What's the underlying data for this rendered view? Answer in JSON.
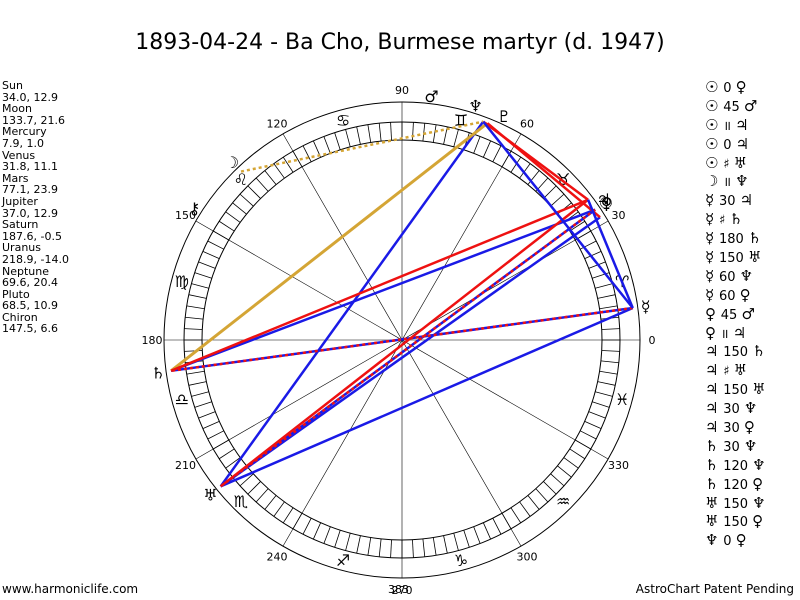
{
  "title": "1893-04-24 - Ba Cho, Burmese martyr (d. 1947)",
  "footer": {
    "left": "www.harmoniclife.com",
    "center": "383",
    "right": "AstroChart Patent Pending"
  },
  "planets": [
    {
      "name": "Sun",
      "coords": "34.0, 12.9"
    },
    {
      "name": "Moon",
      "coords": "133.7, 21.6"
    },
    {
      "name": "Mercury",
      "coords": "7.9, 1.0"
    },
    {
      "name": "Venus",
      "coords": "31.8, 11.1"
    },
    {
      "name": "Mars",
      "coords": "77.1, 23.9"
    },
    {
      "name": "Jupiter",
      "coords": "37.0, 12.9"
    },
    {
      "name": "Saturn",
      "coords": "187.6, -0.5"
    },
    {
      "name": "Uranus",
      "coords": "218.9, -14.0"
    },
    {
      "name": "Neptune",
      "coords": "69.6, 20.4"
    },
    {
      "name": "Pluto",
      "coords": "68.5, 10.9"
    },
    {
      "name": "Chiron",
      "coords": "147.5, 6.6"
    }
  ],
  "aspects": [
    {
      "p1": "☉",
      "angle": "0",
      "p2": "♀"
    },
    {
      "p1": "☉",
      "angle": "45",
      "p2": "♂"
    },
    {
      "p1": "☉",
      "angle": "॥",
      "p2": "♃"
    },
    {
      "p1": "☉",
      "angle": "0",
      "p2": "♃"
    },
    {
      "p1": "☉",
      "angle": "♯",
      "p2": "♅"
    },
    {
      "p1": "☽",
      "angle": "॥",
      "p2": "♆"
    },
    {
      "p1": "☿",
      "angle": "30",
      "p2": "♃"
    },
    {
      "p1": "☿",
      "angle": "♯",
      "p2": "♄"
    },
    {
      "p1": "☿",
      "angle": "180",
      "p2": "♄"
    },
    {
      "p1": "☿",
      "angle": "150",
      "p2": "♅"
    },
    {
      "p1": "☿",
      "angle": "60",
      "p2": "♆"
    },
    {
      "p1": "☿",
      "angle": "60",
      "p2": "♀"
    },
    {
      "p1": "♀",
      "angle": "45",
      "p2": "♂"
    },
    {
      "p1": "♀",
      "angle": "॥",
      "p2": "♃"
    },
    {
      "p1": "♃",
      "angle": "150",
      "p2": "♄"
    },
    {
      "p1": "♃",
      "angle": "♯",
      "p2": "♅"
    },
    {
      "p1": "♃",
      "angle": "150",
      "p2": "♅"
    },
    {
      "p1": "♃",
      "angle": "30",
      "p2": "♆"
    },
    {
      "p1": "♃",
      "angle": "30",
      "p2": "♀"
    },
    {
      "p1": "♄",
      "angle": "30",
      "p2": "♆"
    },
    {
      "p1": "♄",
      "angle": "120",
      "p2": "♆"
    },
    {
      "p1": "♄",
      "angle": "120",
      "p2": "♀"
    },
    {
      "p1": "♅",
      "angle": "150",
      "p2": "♆"
    },
    {
      "p1": "♅",
      "angle": "150",
      "p2": "♀"
    },
    {
      "p1": "♆",
      "angle": "0",
      "p2": "♀"
    }
  ],
  "wheel": {
    "degree_labels": [
      "0",
      "30",
      "60",
      "90",
      "120",
      "150",
      "180",
      "210",
      "240",
      "270",
      "300",
      "330"
    ],
    "zodiac_glyphs": [
      "♈",
      "♉",
      "♊",
      "♋",
      "♌",
      "♍",
      "♎",
      "♏",
      "♐",
      "♑",
      "♒",
      "♓"
    ],
    "planet_glyphs": {
      "sun": "☉",
      "moon": "☽",
      "mercury": "☿",
      "venus": "♀",
      "mars": "♂",
      "jupiter": "♃",
      "saturn": "♄",
      "uranus": "♅",
      "neptune": "♆",
      "pluto": "♇",
      "chiron": "⚷"
    },
    "colors": {
      "red": "#ee1111",
      "blue": "#1a1ae6",
      "gold": "#d4a535"
    }
  }
}
